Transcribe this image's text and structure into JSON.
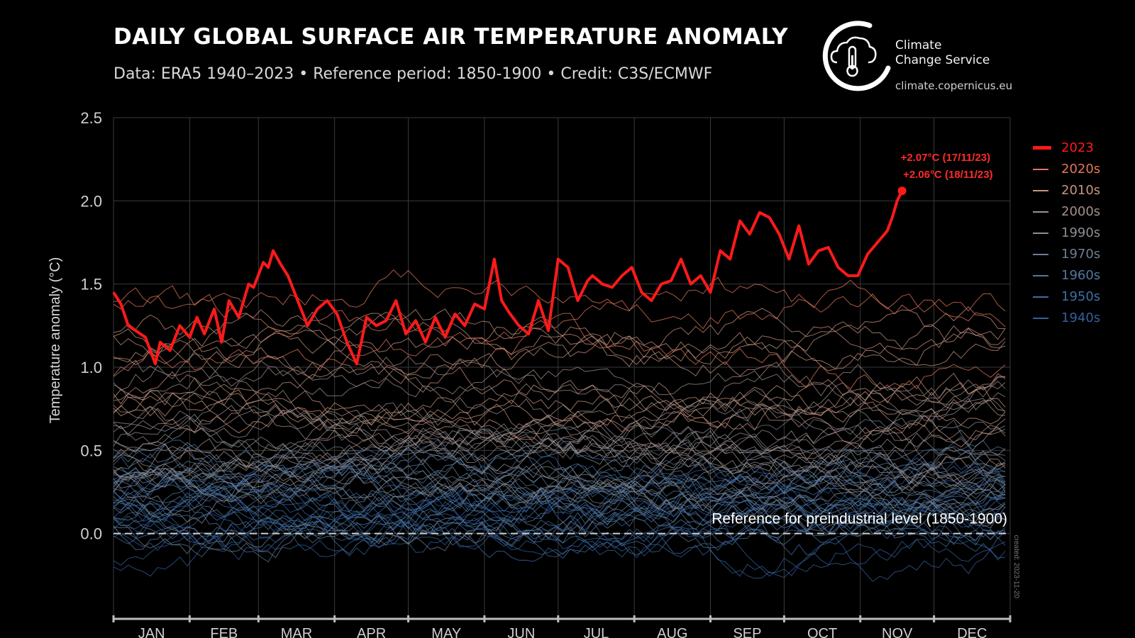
{
  "header": {
    "title": "DAILY GLOBAL SURFACE AIR TEMPERATURE ANOMALY",
    "subtitle": "Data: ERA5 1940–2023 • Reference period: 1850-1900 • Credit: C3S/ECMWF"
  },
  "logo": {
    "name_line1": "Climate",
    "name_line2": "Change Service",
    "url": "climate.copernicus.eu",
    "icon": "copernicus-cloud-thermometer-icon"
  },
  "chart_data": {
    "type": "line",
    "title": "DAILY GLOBAL SURFACE AIR TEMPERATURE ANOMALY",
    "xlabel": "",
    "ylabel": "Temperature anomaly (°C)",
    "ylim": [
      -0.5,
      2.5
    ],
    "yticks": [
      0.0,
      0.5,
      1.0,
      1.5,
      2.0,
      2.5
    ],
    "ytick_labels": [
      "0.0",
      "0.5",
      "1.0",
      "1.5",
      "2.0",
      "2.5"
    ],
    "xlim": [
      1,
      366
    ],
    "month_labels": [
      "JAN",
      "FEB",
      "MAR",
      "APR",
      "MAY",
      "JUN",
      "JUL",
      "AUG",
      "SEP",
      "OCT",
      "NOV",
      "DEC"
    ],
    "month_start_days": [
      1,
      32,
      60,
      91,
      121,
      152,
      182,
      213,
      244,
      274,
      305,
      335,
      366
    ],
    "grid": true,
    "reference_line": {
      "y": 0.0,
      "label": "Reference for preindustrial level (1850-1900)"
    },
    "created_note": "created: 2023-11-20",
    "legend_position": "right",
    "series": [
      {
        "name": "2023",
        "color": "#ff1a1a",
        "x": [
          1,
          4,
          7,
          10,
          14,
          18,
          20,
          24,
          28,
          32,
          35,
          38,
          42,
          45,
          48,
          52,
          56,
          58,
          62,
          64,
          66,
          69,
          72,
          76,
          80,
          84,
          88,
          92,
          96,
          100,
          104,
          108,
          112,
          116,
          120,
          124,
          128,
          132,
          136,
          140,
          144,
          148,
          152,
          156,
          159,
          162,
          166,
          170,
          174,
          178,
          182,
          186,
          190,
          194,
          196,
          200,
          204,
          208,
          212,
          216,
          220,
          224,
          228,
          232,
          236,
          240,
          244,
          248,
          252,
          256,
          260,
          264,
          268,
          272,
          276,
          280,
          284,
          288,
          292,
          296,
          300,
          304,
          308,
          312,
          316,
          318,
          320,
          322
        ],
        "y": [
          1.45,
          1.38,
          1.25,
          1.22,
          1.18,
          1.02,
          1.15,
          1.1,
          1.25,
          1.18,
          1.3,
          1.2,
          1.35,
          1.15,
          1.4,
          1.3,
          1.5,
          1.48,
          1.63,
          1.6,
          1.7,
          1.62,
          1.55,
          1.4,
          1.25,
          1.35,
          1.4,
          1.32,
          1.15,
          1.02,
          1.3,
          1.25,
          1.28,
          1.4,
          1.2,
          1.28,
          1.15,
          1.3,
          1.18,
          1.32,
          1.25,
          1.38,
          1.35,
          1.65,
          1.4,
          1.33,
          1.25,
          1.2,
          1.4,
          1.22,
          1.65,
          1.6,
          1.4,
          1.52,
          1.55,
          1.5,
          1.48,
          1.55,
          1.6,
          1.45,
          1.4,
          1.5,
          1.52,
          1.65,
          1.5,
          1.55,
          1.45,
          1.7,
          1.65,
          1.88,
          1.8,
          1.93,
          1.9,
          1.8,
          1.65,
          1.85,
          1.62,
          1.7,
          1.72,
          1.6,
          1.55,
          1.55,
          1.68,
          1.75,
          1.82,
          1.9,
          2.0,
          2.06
        ]
      },
      {
        "name": "2020s",
        "color": "#e4765a"
      },
      {
        "name": "2010s",
        "color": "#c8937e"
      },
      {
        "name": "2000s",
        "color": "#a38e88"
      },
      {
        "name": "1990s",
        "color": "#8e8e94"
      },
      {
        "name": "1970s",
        "color": "#6e7e92"
      },
      {
        "name": "1960s",
        "color": "#52779e"
      },
      {
        "name": "1950s",
        "color": "#3f6ea8"
      },
      {
        "name": "1940s",
        "color": "#33609c"
      }
    ],
    "annotations": [
      {
        "text": "+2.07°C (17/11/23)",
        "x": 321,
        "y": 2.07
      },
      {
        "text": "+2.06°C (18/11/23)",
        "x": 322,
        "y": 2.06
      }
    ]
  }
}
